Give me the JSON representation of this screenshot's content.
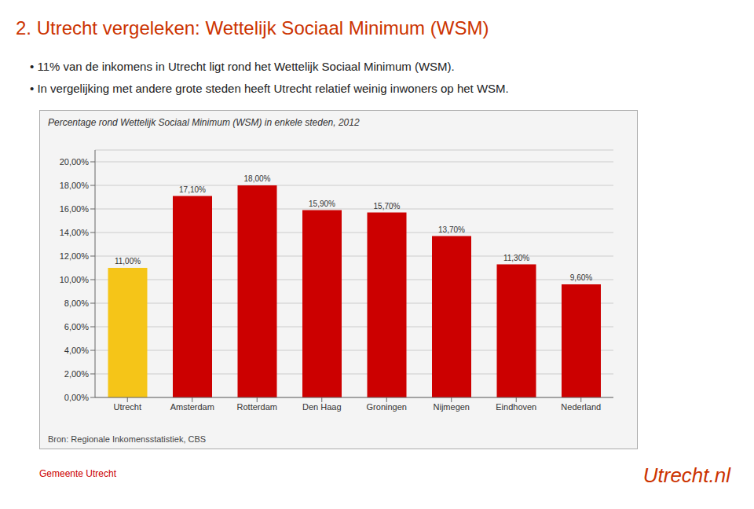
{
  "chart_data": {
    "type": "bar",
    "title": "Percentage rond Wettelijk Sociaal Minimum (WSM) in enkele steden, 2012",
    "annotations": [
      "2. Utrecht vergeleken: Wettelijk Sociaal Minimum (WSM)",
      "•  11% van de inkomens in Utrecht ligt rond het Wettelijk Sociaal Minimum (WSM).",
      "•  In vergelijking met andere grote steden heeft Utrecht relatief weinig inwoners op het WSM.",
      "Bron: Regionale Inkomensstatistiek, CBS",
      "Utrecht.nl",
      "Gemeente Utrecht"
    ],
    "categories": [
      "Utrecht",
      "Amsterdam",
      "Rotterdam",
      "Den Haag",
      "Groningen",
      "Nijmegen",
      "Eindhoven",
      "Nederland"
    ],
    "values": [
      11.0,
      17.1,
      18.0,
      15.9,
      15.7,
      13.7,
      11.3,
      9.6
    ],
    "value_labels": [
      "11,00%",
      "17,10%",
      "18,00%",
      "15,90%",
      "15,70%",
      "13,70%",
      "11,30%",
      "9,60%"
    ],
    "data_labels": true,
    "colors": [
      "#F5C518",
      "#CC0000",
      "#CC0000",
      "#CC0000",
      "#CC0000",
      "#CC0000",
      "#CC0000",
      "#CC0000"
    ],
    "ylim": [
      0,
      21
    ],
    "yticks": [
      {
        "value": 0,
        "label": "0,00%"
      },
      {
        "value": 2,
        "label": "2,00%"
      },
      {
        "value": 4,
        "label": "4,00%"
      },
      {
        "value": 6,
        "label": "6,00%"
      },
      {
        "value": 8,
        "label": "8,00%"
      },
      {
        "value": 10,
        "label": "10,00%"
      },
      {
        "value": 12,
        "label": "12,00%"
      },
      {
        "value": 14,
        "label": "14,00%"
      },
      {
        "value": 16,
        "label": "16,00%"
      },
      {
        "value": 18,
        "label": "18,00%"
      },
      {
        "value": 20,
        "label": "20,00%"
      }
    ],
    "grid": true
  }
}
